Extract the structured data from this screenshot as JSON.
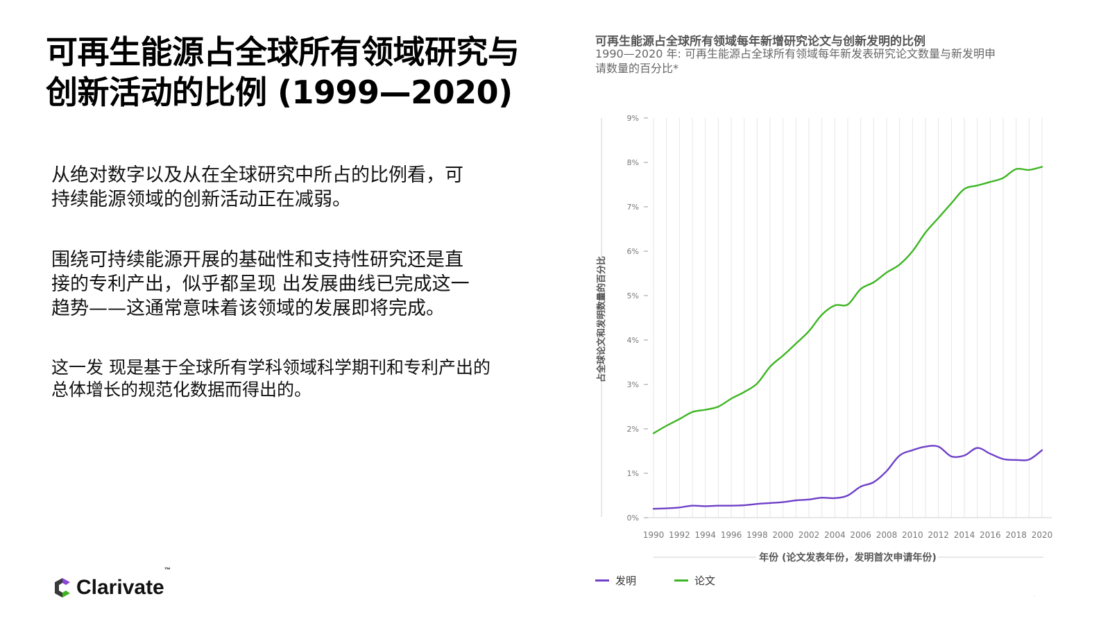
{
  "slide": {
    "title_lines": [
      "可再生能源占全球所有领域研究与",
      "创新活动的比例 (1999—2020)"
    ],
    "paragraph1_lines": [
      "从绝对数字以及从在全球研究中所占的比例看，可",
      "持续能源领域的创新活动正在减弱。"
    ],
    "paragraph2_lines": [
      "围绕可持续能源开展的基础性和支持性研究还是直",
      "接的专利产出，似乎都呈现 出发展曲线已完成这一",
      "趋势——这通常意味着该领域的发展即将完成。"
    ],
    "paragraph3_lines": [
      "这一发 现是基于全球所有学科领域科学期刊和专利产出的",
      "总体增长的规范化数据而得出的。"
    ],
    "logo_text": "Clarivate",
    "logo_tm": "™"
  },
  "chart_data": {
    "type": "line",
    "title": "可再生能源占全球所有领域每年新增研究论文与创新发明的比例",
    "subtitle_lines": [
      "1990—2020 年: 可再生能源占全球所有领域每年新发表研究论文数量与新发明申",
      "请数量的百分比*"
    ],
    "ylabel": "占全球论文和发明数量的百分比",
    "xlabel": "年份 (论文发表年份，发明首次申请年份)",
    "ylim": [
      0,
      9
    ],
    "yticks": [
      "0%",
      "1%",
      "2%",
      "3%",
      "4%",
      "5%",
      "6%",
      "7%",
      "8%",
      "9%"
    ],
    "xticks": [
      "1990",
      "1992",
      "1994",
      "1996",
      "1998",
      "2000",
      "2002",
      "2004",
      "2006",
      "2008",
      "2010",
      "2012",
      "2014",
      "2016",
      "2018",
      "2020"
    ],
    "grid": true,
    "legend_position": "bottom-left",
    "x": [
      1990,
      1991,
      1992,
      1993,
      1994,
      1995,
      1996,
      1997,
      1998,
      1999,
      2000,
      2001,
      2002,
      2003,
      2004,
      2005,
      2006,
      2007,
      2008,
      2009,
      2010,
      2011,
      2012,
      2013,
      2014,
      2015,
      2016,
      2017,
      2018,
      2019,
      2020
    ],
    "series": [
      {
        "name": "发明",
        "color": "#6e3fc8",
        "values": [
          0.2,
          0.21,
          0.23,
          0.27,
          0.26,
          0.27,
          0.27,
          0.28,
          0.31,
          0.33,
          0.35,
          0.39,
          0.41,
          0.45,
          0.44,
          0.5,
          0.7,
          0.8,
          1.05,
          1.4,
          1.52,
          1.6,
          1.6,
          1.38,
          1.4,
          1.57,
          1.44,
          1.32,
          1.3,
          1.31,
          1.52
        ]
      },
      {
        "name": "论文",
        "color": "#3cb521",
        "values": [
          1.9,
          2.07,
          2.22,
          2.38,
          2.43,
          2.5,
          2.68,
          2.83,
          3.02,
          3.4,
          3.65,
          3.92,
          4.2,
          4.57,
          4.78,
          4.8,
          5.15,
          5.3,
          5.52,
          5.7,
          6.0,
          6.42,
          6.75,
          7.08,
          7.4,
          7.48,
          7.56,
          7.65,
          7.85,
          7.83,
          7.9
        ]
      }
    ]
  }
}
